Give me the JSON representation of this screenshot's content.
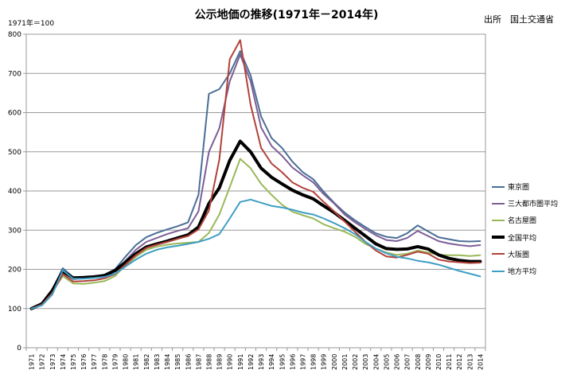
{
  "header": {
    "title": "公示地価の推移(1971年－2014年)",
    "unit_note": "1971年＝100",
    "source": "出所　国土交通省"
  },
  "chart_data": {
    "type": "line",
    "ylim": [
      0,
      800
    ],
    "yticks": [
      "0",
      "100",
      "200",
      "300",
      "400",
      "500",
      "600",
      "700",
      "800"
    ],
    "grid": true,
    "legend_position": "right",
    "x": [
      "1971",
      "1972",
      "1973",
      "1974",
      "1975",
      "1976",
      "1977",
      "1978",
      "1979",
      "1980",
      "1981",
      "1982",
      "1983",
      "1984",
      "1985",
      "1986",
      "1987",
      "1988",
      "1989",
      "1990",
      "1991",
      "1992",
      "1993",
      "1994",
      "1995",
      "1996",
      "1997",
      "1998",
      "1999",
      "2000",
      "2001",
      "2002",
      "2003",
      "2004",
      "2005",
      "2006",
      "2007",
      "2008",
      "2009",
      "2010",
      "2011",
      "2012",
      "2013",
      "2014"
    ],
    "series": [
      {
        "name": "東京圏",
        "color": "#4a6e96",
        "width": 2,
        "values": [
          100,
          113,
          148,
          203,
          180,
          180,
          182,
          187,
          200,
          232,
          262,
          282,
          293,
          302,
          310,
          320,
          390,
          648,
          660,
          700,
          757,
          695,
          590,
          535,
          510,
          475,
          448,
          430,
          398,
          370,
          345,
          325,
          308,
          292,
          283,
          280,
          292,
          312,
          297,
          282,
          277,
          272,
          271,
          272
        ]
      },
      {
        "name": "三大都市圏平均",
        "color": "#7c5f96",
        "width": 2,
        "values": [
          100,
          112,
          145,
          197,
          175,
          177,
          180,
          183,
          195,
          222,
          250,
          270,
          280,
          290,
          298,
          305,
          348,
          500,
          560,
          680,
          748,
          680,
          562,
          515,
          490,
          460,
          440,
          422,
          392,
          368,
          340,
          320,
          303,
          287,
          275,
          272,
          280,
          298,
          285,
          272,
          266,
          262,
          259,
          262
        ]
      },
      {
        "name": "名古屋圏",
        "color": "#9bb85a",
        "width": 2,
        "values": [
          100,
          111,
          143,
          183,
          164,
          163,
          166,
          170,
          183,
          210,
          232,
          250,
          258,
          263,
          266,
          268,
          270,
          293,
          340,
          410,
          482,
          458,
          418,
          390,
          365,
          347,
          338,
          330,
          315,
          305,
          296,
          283,
          265,
          253,
          243,
          237,
          240,
          248,
          243,
          237,
          236,
          236,
          234,
          236
        ]
      },
      {
        "name": "全国平均",
        "color": "#000000",
        "width": 4,
        "values": [
          100,
          112,
          146,
          195,
          178,
          179,
          181,
          184,
          197,
          218,
          240,
          257,
          265,
          272,
          280,
          288,
          308,
          368,
          408,
          478,
          527,
          500,
          458,
          435,
          418,
          402,
          390,
          380,
          362,
          345,
          325,
          305,
          285,
          265,
          253,
          251,
          252,
          258,
          252,
          237,
          228,
          223,
          220,
          220
        ]
      },
      {
        "name": "大阪圏",
        "color": "#b3413a",
        "width": 2,
        "values": [
          100,
          110,
          140,
          188,
          169,
          170,
          172,
          177,
          188,
          212,
          236,
          255,
          263,
          270,
          278,
          285,
          302,
          350,
          480,
          736,
          785,
          620,
          510,
          470,
          448,
          422,
          408,
          398,
          372,
          348,
          322,
          296,
          270,
          248,
          233,
          230,
          237,
          245,
          240,
          225,
          220,
          218,
          216,
          217
        ]
      },
      {
        "name": "地方平均",
        "color": "#3f9ec3",
        "width": 2,
        "values": [
          100,
          108,
          136,
          198,
          176,
          176,
          178,
          181,
          189,
          207,
          225,
          240,
          250,
          256,
          260,
          265,
          270,
          278,
          290,
          330,
          372,
          378,
          370,
          362,
          358,
          352,
          345,
          340,
          330,
          318,
          305,
          290,
          270,
          253,
          241,
          232,
          228,
          222,
          218,
          212,
          204,
          196,
          189,
          182
        ]
      }
    ]
  },
  "legend": [
    {
      "label": "東京圏",
      "color": "#4a6e96",
      "width": 2
    },
    {
      "label": "三大都市圏平均",
      "color": "#7c5f96",
      "width": 2
    },
    {
      "label": "名古屋圏",
      "color": "#9bb85a",
      "width": 2
    },
    {
      "label": "全国平均",
      "color": "#000000",
      "width": 4
    },
    {
      "label": "大阪圏",
      "color": "#b3413a",
      "width": 2
    },
    {
      "label": "地方平均",
      "color": "#3f9ec3",
      "width": 2
    }
  ]
}
